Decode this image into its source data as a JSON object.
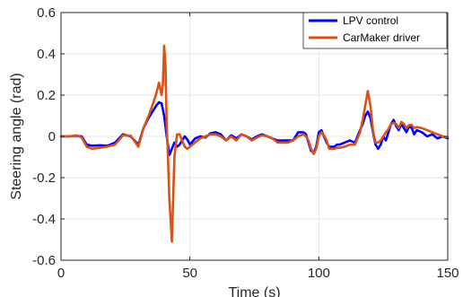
{
  "chart_data": {
    "type": "line",
    "title": "",
    "xlabel": "Time (s)",
    "ylabel": "Steering angle (rad)",
    "xlim": [
      0,
      150
    ],
    "ylim": [
      -0.6,
      0.6
    ],
    "xticks": [
      "0",
      "50",
      "100",
      "150"
    ],
    "yticks": [
      "0.6",
      "0.4",
      "0.2",
      "0",
      "-0.2",
      "-0.4",
      "-0.6"
    ],
    "grid": true,
    "legend_position": "top-right",
    "series": [
      {
        "name": "LPV control",
        "color": "#0000ff",
        "x": [
          0,
          3,
          6,
          8,
          10,
          12,
          15,
          18,
          21,
          24,
          27,
          30,
          32,
          34,
          36,
          37,
          38,
          39,
          40,
          41,
          42,
          43,
          44,
          45,
          46,
          47,
          48,
          49,
          50,
          52,
          54,
          56,
          58,
          60,
          62,
          64,
          66,
          68,
          70,
          72,
          74,
          76,
          78,
          80,
          82,
          84,
          86,
          88,
          90,
          92,
          94,
          95,
          96,
          97,
          98,
          99,
          100,
          101,
          102,
          103,
          104,
          105,
          106,
          107,
          108,
          110,
          112,
          114,
          116,
          117,
          118,
          119,
          120,
          121,
          122,
          123,
          124,
          125,
          126,
          127,
          128,
          129,
          130,
          131,
          132,
          133,
          134,
          135,
          136,
          137,
          138,
          140,
          142,
          144,
          146,
          148,
          150
        ],
        "y": [
          0,
          0,
          0.003,
          0,
          -0.04,
          -0.045,
          -0.043,
          -0.045,
          -0.03,
          0.01,
          0,
          -0.04,
          0.04,
          0.09,
          0.13,
          0.15,
          0.165,
          0.16,
          0.1,
          0,
          -0.09,
          -0.06,
          -0.03,
          -0.05,
          -0.04,
          -0.02,
          0,
          -0.015,
          -0.04,
          -0.01,
          0,
          -0.005,
          0.015,
          0.02,
          0.01,
          -0.02,
          0.005,
          -0.01,
          0.01,
          0,
          -0.015,
          0,
          0.01,
          0,
          -0.01,
          -0.02,
          -0.02,
          -0.02,
          -0.02,
          0.02,
          0.02,
          0.01,
          -0.03,
          -0.07,
          -0.08,
          -0.05,
          0.02,
          0.03,
          0,
          -0.03,
          -0.05,
          -0.05,
          -0.05,
          -0.04,
          -0.04,
          -0.03,
          -0.02,
          -0.03,
          0.03,
          0.06,
          0.1,
          0.12,
          0.09,
          0.02,
          -0.04,
          -0.06,
          -0.04,
          0,
          -0.02,
          0.02,
          0.06,
          0.08,
          0.05,
          0.03,
          0.06,
          0.04,
          0.02,
          0.05,
          0.04,
          0.01,
          0.03,
          0.02,
          0,
          0.01,
          -0.01,
          0,
          -0.01
        ]
      },
      {
        "name": "CarMaker driver",
        "color": "#d95319",
        "x": [
          0,
          3,
          6,
          8,
          10,
          12,
          15,
          18,
          21,
          24,
          27,
          30,
          32,
          34,
          36,
          37,
          38,
          39,
          39.5,
          40,
          40.5,
          41,
          41.5,
          42,
          43,
          43.5,
          44,
          45,
          46,
          47,
          48,
          49,
          50,
          52,
          54,
          56,
          58,
          60,
          62,
          64,
          66,
          68,
          70,
          72,
          74,
          76,
          78,
          80,
          82,
          84,
          86,
          88,
          90,
          92,
          94,
          95,
          96,
          97,
          98,
          99,
          100,
          101,
          102,
          103,
          104,
          105,
          106,
          107,
          108,
          110,
          112,
          114,
          116,
          117,
          118,
          119,
          120,
          121,
          122,
          123,
          124,
          125,
          126,
          127,
          128,
          129,
          130,
          131,
          132,
          133,
          134,
          135,
          136,
          137,
          138,
          140,
          142,
          144,
          146,
          148,
          150
        ],
        "y": [
          0,
          0,
          0.005,
          -0.005,
          -0.05,
          -0.06,
          -0.055,
          -0.05,
          -0.04,
          0.005,
          0.003,
          -0.05,
          0.04,
          0.1,
          0.17,
          0.21,
          0.26,
          0.2,
          0.25,
          0.44,
          0.35,
          0.05,
          -0.1,
          -0.3,
          -0.51,
          -0.3,
          -0.1,
          0.01,
          0.01,
          -0.02,
          -0.05,
          -0.06,
          -0.05,
          -0.03,
          -0.01,
          0,
          0.01,
          0.01,
          0,
          -0.02,
          0,
          -0.02,
          0.01,
          0,
          -0.02,
          -0.005,
          0.005,
          0,
          -0.01,
          -0.03,
          -0.03,
          -0.03,
          -0.02,
          0,
          0.01,
          0,
          -0.02,
          -0.06,
          -0.085,
          -0.06,
          0,
          0.02,
          0.005,
          -0.02,
          -0.06,
          -0.06,
          -0.06,
          -0.055,
          -0.055,
          -0.05,
          -0.04,
          -0.04,
          0.02,
          0.08,
          0.15,
          0.22,
          0.15,
          0.03,
          -0.03,
          -0.03,
          -0.02,
          0,
          0.02,
          0.035,
          0.06,
          0.065,
          0.06,
          0.04,
          0.07,
          0.06,
          0.04,
          0.055,
          0.055,
          0.04,
          0.045,
          0.04,
          0.03,
          0.02,
          0.01,
          0,
          -0.005
        ]
      }
    ]
  }
}
